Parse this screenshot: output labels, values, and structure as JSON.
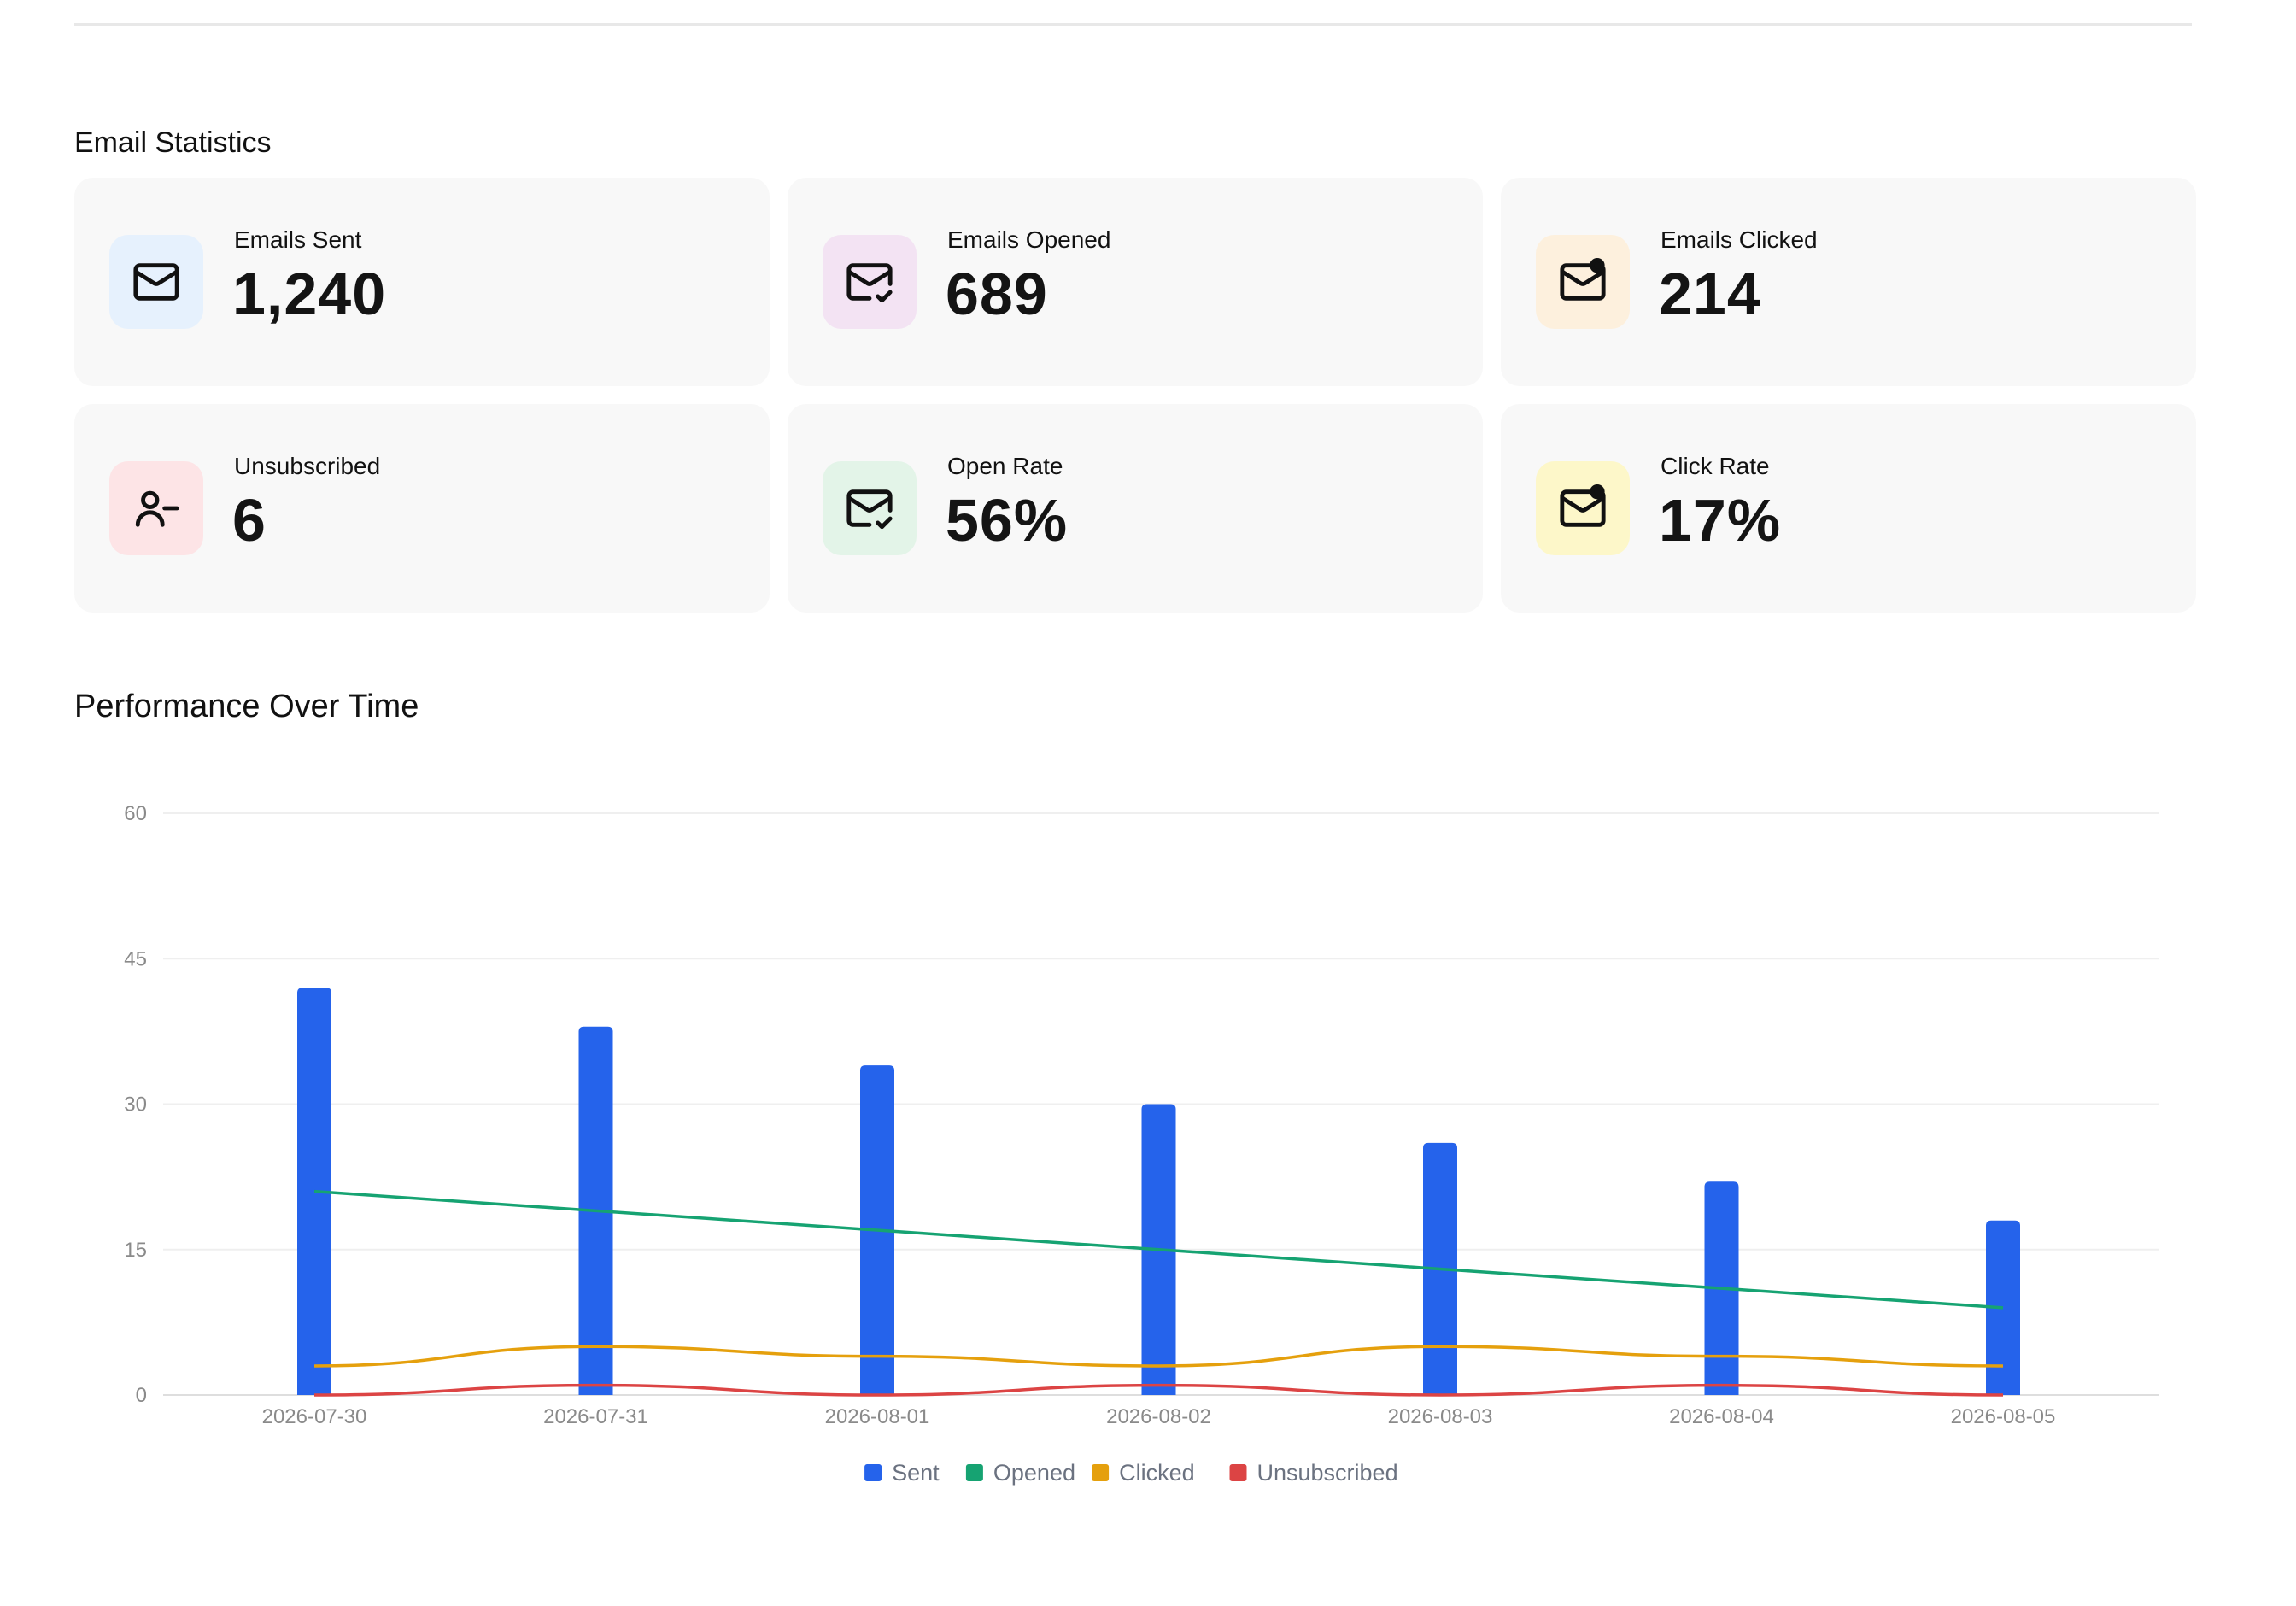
{
  "email_statistics": {
    "title": "Email Statistics",
    "cards": [
      {
        "label": "Emails Sent",
        "value": "1,240",
        "icon": "mail-icon",
        "icon_bg": "#e6f1fd"
      },
      {
        "label": "Emails Opened",
        "value": "689",
        "icon": "mail-check-icon",
        "icon_bg": "#f3e3f3"
      },
      {
        "label": "Emails Clicked",
        "value": "214",
        "icon": "mail-dot-icon",
        "icon_bg": "#fdf0dd"
      },
      {
        "label": "Unsubscribed",
        "value": "6",
        "icon": "user-minus-icon",
        "icon_bg": "#fde4e6"
      },
      {
        "label": "Open Rate",
        "value": "56%",
        "icon": "mail-check-icon",
        "icon_bg": "#e3f4e8"
      },
      {
        "label": "Click Rate",
        "value": "17%",
        "icon": "mail-dot-icon",
        "icon_bg": "#fdf7c9"
      }
    ]
  },
  "performance": {
    "title": "Performance Over Time"
  },
  "chart_data": {
    "type": "bar",
    "categories": [
      "2026-07-30",
      "2026-07-31",
      "2026-08-01",
      "2026-08-02",
      "2026-08-03",
      "2026-08-04",
      "2026-08-05"
    ],
    "ylim": [
      0,
      60
    ],
    "yticks": [
      "0",
      "15",
      "30",
      "45",
      "60"
    ],
    "grid": true,
    "legend_position": "bottom-center",
    "series": [
      {
        "name": "Sent",
        "kind": "bar",
        "color": "#2563eb",
        "values": [
          42,
          38,
          34,
          30,
          26,
          22,
          18
        ]
      },
      {
        "name": "Opened",
        "kind": "line",
        "color": "#16a372",
        "values": [
          21,
          19,
          17,
          15,
          13,
          11,
          9
        ]
      },
      {
        "name": "Clicked",
        "kind": "line",
        "color": "#e5a00d",
        "values": [
          3,
          5,
          4,
          3,
          5,
          4,
          3
        ]
      },
      {
        "name": "Unsubscribed",
        "kind": "line",
        "color": "#dc4444",
        "values": [
          0,
          1,
          0,
          1,
          0,
          1,
          0
        ]
      }
    ]
  }
}
